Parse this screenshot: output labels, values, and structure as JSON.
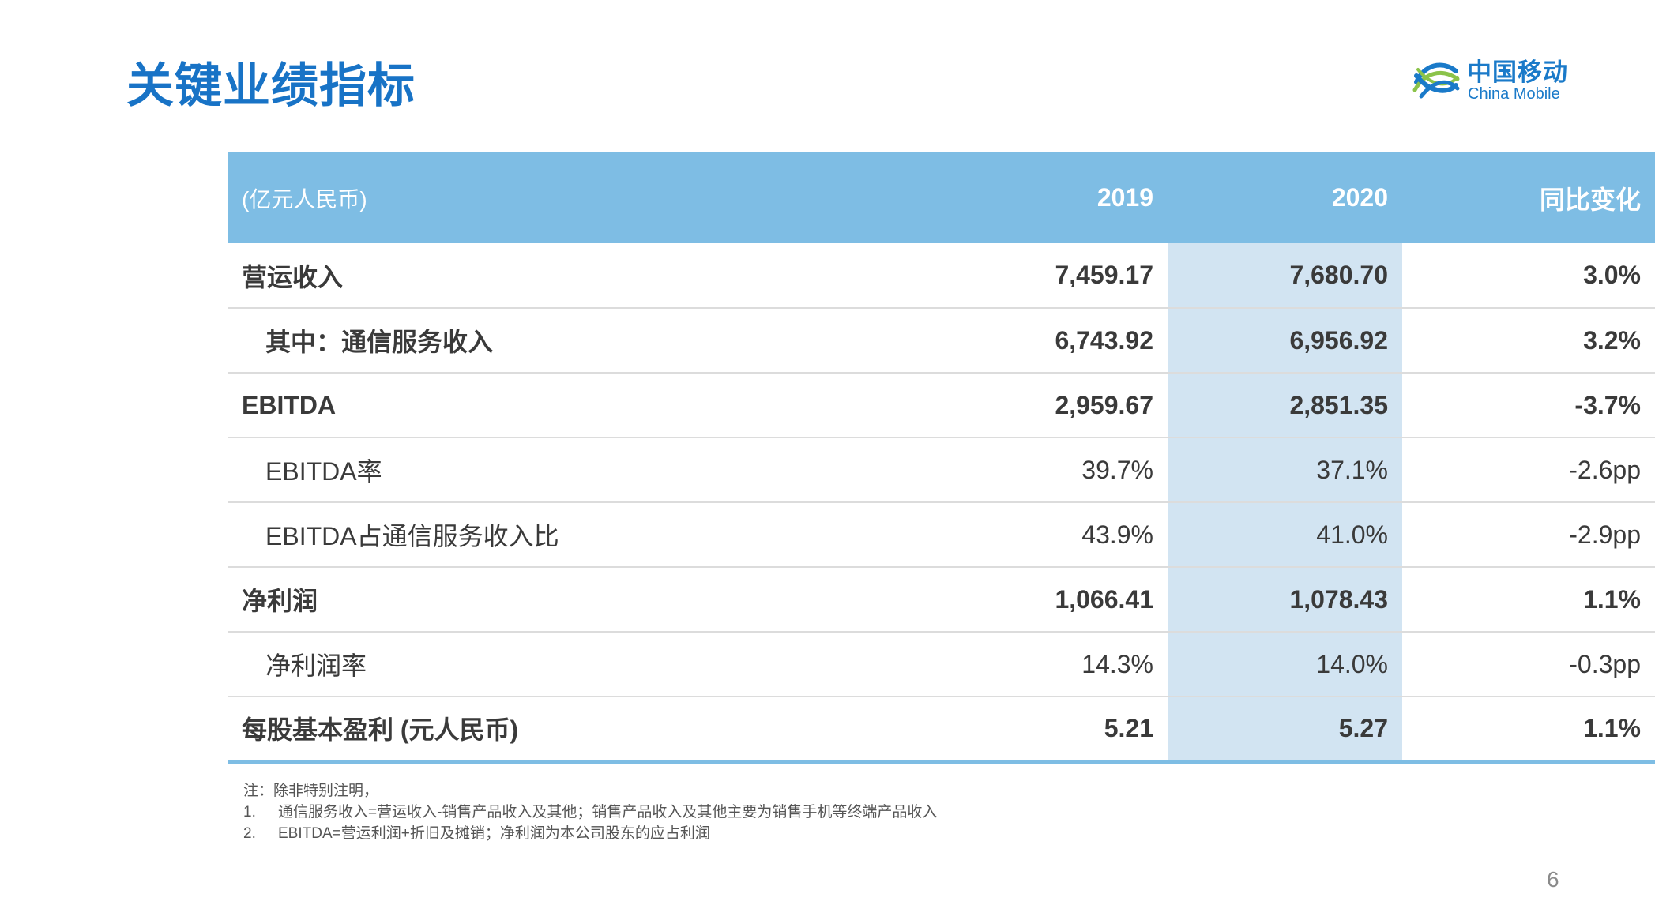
{
  "title": "关键业绩指标",
  "logo": {
    "icon": "china-mobile-swirl-icon",
    "cn_text": "中国移动",
    "en_text": "China Mobile",
    "colors": [
      "#1a7ac9",
      "#8bc34a"
    ]
  },
  "table": {
    "headers": {
      "unit": "(亿元人民币)",
      "y2019": "2019",
      "y2020": "2020",
      "yoy": "同比变化"
    },
    "rows": [
      {
        "label": "营运收入",
        "y2019": "7,459.17",
        "y2020": "7,680.70",
        "yoy": "3.0%"
      },
      {
        "label": "其中：通信服务收入",
        "y2019": "6,743.92",
        "y2020": "6,956.92",
        "yoy": "3.2%"
      },
      {
        "label": "EBITDA",
        "y2019": "2,959.67",
        "y2020": "2,851.35",
        "yoy": "-3.7%"
      },
      {
        "label": "EBITDA率",
        "y2019": "39.7%",
        "y2020": "37.1%",
        "yoy": "-2.6pp"
      },
      {
        "label": "EBITDA占通信服务收入比",
        "y2019": "43.9%",
        "y2020": "41.0%",
        "yoy": "-2.9pp"
      },
      {
        "label": "净利润",
        "y2019": "1,066.41",
        "y2020": "1,078.43",
        "yoy": "1.1%"
      },
      {
        "label": "净利润率",
        "y2019": "14.3%",
        "y2020": "14.0%",
        "yoy": "-0.3pp"
      },
      {
        "label": "每股基本盈利 (元人民币)",
        "y2019": "5.21",
        "y2020": "5.27",
        "yoy": "1.1%"
      }
    ]
  },
  "notes": {
    "heading": "注：除非特别注明，",
    "items": [
      {
        "num": "1.",
        "text": "通信服务收入=营运收入-销售产品收入及其他；销售产品收入及其他主要为销售手机等终端产品收入"
      },
      {
        "num": "2.",
        "text": "EBITDA=营运利润+折旧及摊销；净利润为本公司股东的应占利润"
      }
    ]
  },
  "page_number": "6",
  "colors": {
    "title": "#1873c6",
    "header_bg": "#7ebde4",
    "highlight_col": "#d2e4f2"
  }
}
